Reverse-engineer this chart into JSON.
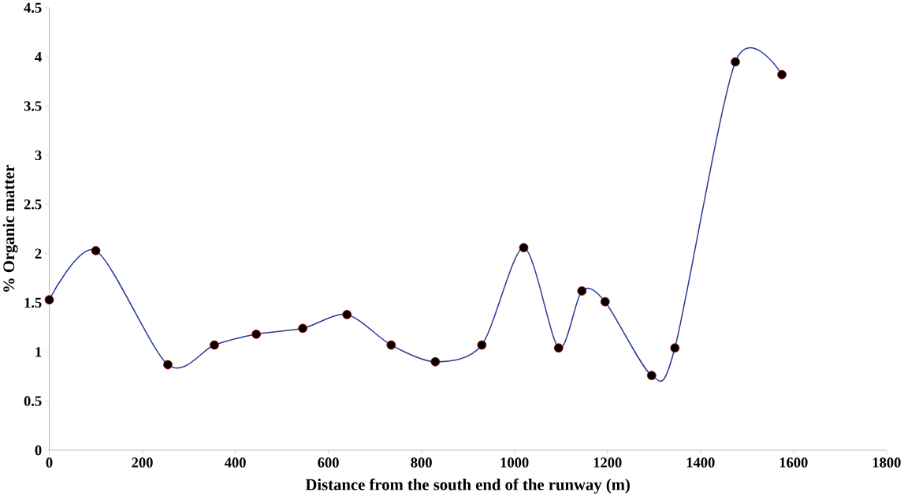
{
  "chart_data": {
    "type": "line",
    "xlabel": "Distance from the south end of the runway (m)",
    "ylabel": "% Organic matter",
    "x": [
      0,
      100,
      255,
      355,
      445,
      545,
      640,
      735,
      830,
      930,
      1020,
      1095,
      1145,
      1195,
      1295,
      1345,
      1475,
      1575
    ],
    "series": [
      {
        "color": "#2b3a9a",
        "values": [
          1.53,
          2.03,
          0.87,
          1.07,
          1.18,
          1.24,
          1.38,
          1.07,
          0.9,
          1.07,
          2.06,
          1.04,
          1.62,
          1.51,
          0.76,
          1.04,
          3.95,
          3.82
        ]
      }
    ],
    "marker": "circle",
    "line_style": "solid",
    "grid": false,
    "xlim": [
      0,
      1800
    ],
    "xticks": [
      0,
      200,
      400,
      600,
      800,
      1000,
      1200,
      1400,
      1600,
      1800
    ],
    "ylim": [
      0,
      4.5
    ],
    "yticks": [
      0,
      0.5,
      1,
      1.5,
      2,
      2.5,
      3,
      3.5,
      4,
      4.5
    ]
  }
}
